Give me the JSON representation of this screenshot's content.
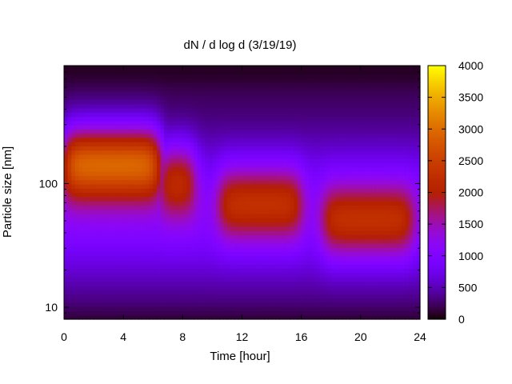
{
  "chart_data": {
    "type": "heatmap",
    "title": "dN / d log d (3/19/19)",
    "xlabel": "Time [hour]",
    "ylabel": "Particle size [nm]",
    "x_range": [
      0,
      24
    ],
    "y_range_nm": [
      8,
      900
    ],
    "y_scale": "log",
    "x_ticks": [
      "0",
      "4",
      "8",
      "12",
      "16",
      "20",
      "24"
    ],
    "y_ticks": [
      "10",
      "100"
    ],
    "colorbar": {
      "range": [
        0,
        4000
      ],
      "ticks": [
        "0",
        "500",
        "1000",
        "1500",
        "2000",
        "2500",
        "3000",
        "3500",
        "4000"
      ],
      "palette": "black-purple-red-orange-yellow"
    },
    "features": [
      {
        "t_start": 0,
        "t_end": 6.5,
        "peak_nm": 150,
        "peak_value": 3100
      },
      {
        "t_start": 6.5,
        "t_end": 8.8,
        "peak_nm": 110,
        "peak_value": 2200
      },
      {
        "t_start": 10.5,
        "t_end": 16,
        "peak_nm": 70,
        "peak_value": 2100
      },
      {
        "t_start": 17.5,
        "t_end": 23.5,
        "peak_nm": 50,
        "peak_value": 2100
      }
    ]
  }
}
